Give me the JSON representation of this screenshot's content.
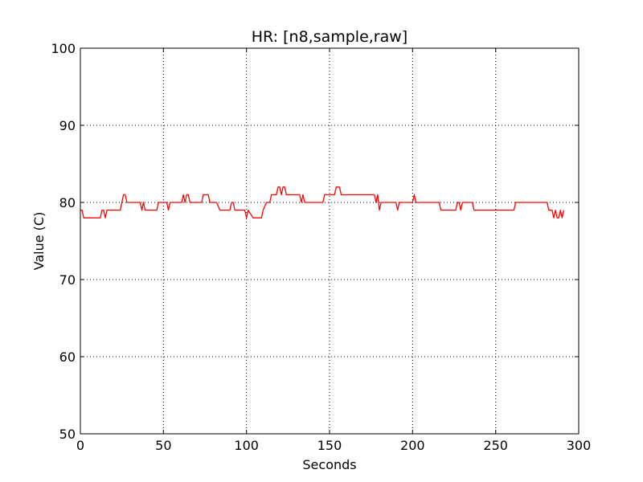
{
  "chart_data": {
    "type": "line",
    "title": "HR: [n8,sample,raw]",
    "xlabel": "Seconds",
    "ylabel": "Value (C)",
    "xlim": [
      0,
      300
    ],
    "ylim": [
      50,
      100
    ],
    "grid": true,
    "x_ticks": [
      "0",
      "50",
      "100",
      "150",
      "200",
      "250",
      "300"
    ],
    "y_ticks": [
      "50",
      "60",
      "70",
      "80",
      "90",
      "100"
    ],
    "series": [
      {
        "color": "#ff0000",
        "x": [
          0,
          1,
          2,
          3,
          4,
          12,
          13,
          14,
          15,
          16,
          24,
          26,
          27,
          28,
          36,
          37,
          38,
          39,
          40,
          46,
          47,
          52,
          53,
          54,
          61,
          62,
          63,
          64,
          65,
          66,
          67,
          68,
          73,
          74,
          77,
          78,
          81,
          82,
          84,
          90,
          91,
          92,
          93,
          95,
          99,
          100,
          101,
          104,
          105,
          109,
          110,
          112,
          114,
          115,
          118,
          119,
          120,
          121,
          122,
          123,
          124,
          126,
          127,
          132,
          133,
          134,
          135,
          136,
          137,
          146,
          147,
          153,
          154,
          156,
          157,
          177,
          178,
          179,
          180,
          181,
          182,
          183,
          190,
          191,
          192,
          200,
          201,
          202,
          203,
          210,
          216,
          217,
          226,
          227,
          228,
          229,
          230,
          231,
          236,
          237,
          261,
          262,
          281,
          282,
          284,
          285,
          286,
          287,
          288,
          289,
          290,
          291
        ],
        "y": [
          79,
          79,
          78,
          78,
          78,
          78,
          79,
          79,
          78,
          79,
          79,
          81,
          81,
          80,
          80,
          79,
          80,
          79,
          79,
          79,
          80,
          80,
          79,
          80,
          80,
          81,
          80,
          81,
          81,
          80,
          80,
          80,
          80,
          81,
          81,
          80,
          80,
          80,
          79,
          79,
          80,
          80,
          79,
          79,
          79,
          78,
          79,
          78,
          78,
          78,
          79,
          80,
          80,
          81,
          81,
          82,
          82,
          81,
          82,
          82,
          81,
          81,
          81,
          81,
          80,
          81,
          80,
          80,
          80,
          80,
          81,
          81,
          82,
          82,
          81,
          81,
          80,
          81,
          79,
          80,
          80,
          80,
          80,
          79,
          80,
          80,
          81,
          80,
          80,
          80,
          80,
          79,
          79,
          80,
          80,
          79,
          80,
          80,
          80,
          79,
          79,
          80,
          80,
          79,
          79,
          78,
          79,
          78,
          78,
          79,
          78,
          79
        ]
      }
    ]
  }
}
